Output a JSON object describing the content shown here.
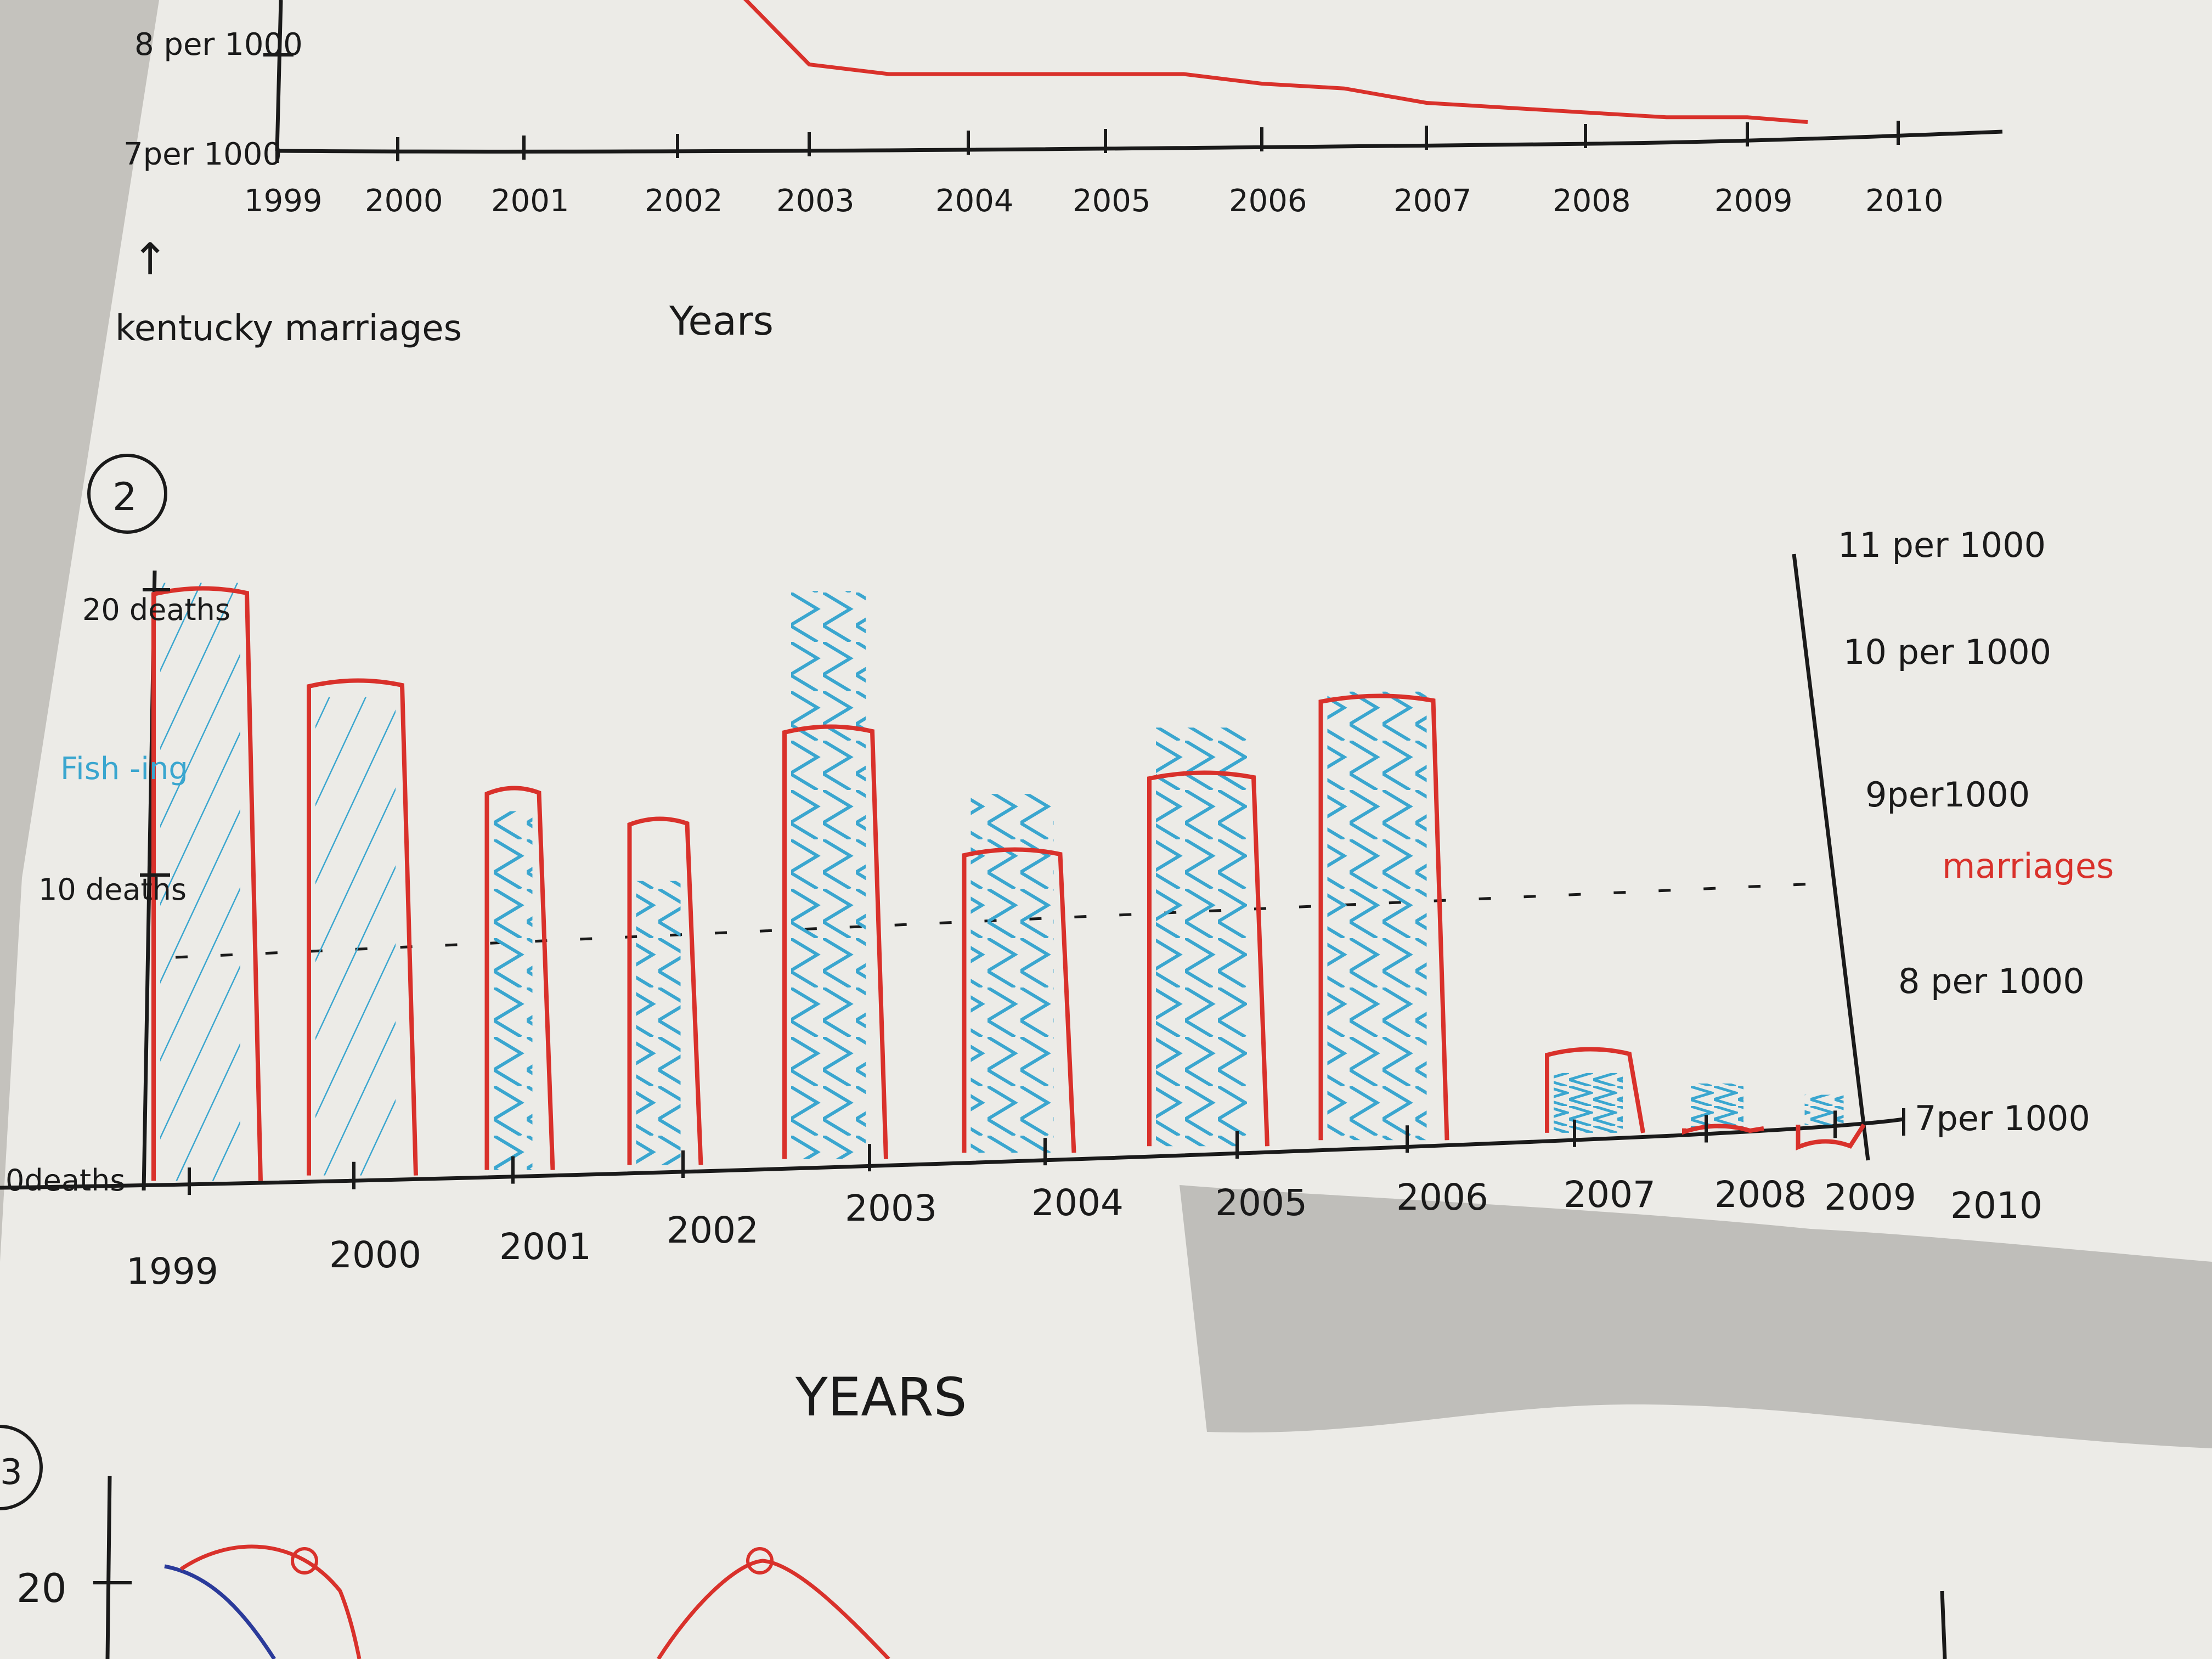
{
  "colors": {
    "paper": "#ecebe7",
    "ink": "#1a1a1a",
    "marriage_red": "#d9312b",
    "fishing_blue": "#3aa6cf",
    "shadow": "#9a9995",
    "top_bg": "#f4f3f0"
  },
  "chart_data": [
    {
      "type": "line",
      "title": "",
      "xlabel": "Years",
      "ylabel": "kentucky marriages",
      "x_ticks": [
        "1999",
        "2000",
        "2001",
        "2002",
        "2003",
        "2004",
        "2005",
        "2006",
        "2007",
        "2008",
        "2009",
        "2010"
      ],
      "y_ticks": [
        "7per 1000",
        "8 per 1000"
      ],
      "ylim_visible": [
        7,
        8.9
      ],
      "series": [
        {
          "color": "#d9312b",
          "x": [
            2002.0,
            2002.5,
            2003.0,
            2003.5,
            2004.0,
            2004.5,
            2005.0,
            2005.5,
            2006.0,
            2006.5,
            2007.0,
            2007.5,
            2008.0,
            2008.5,
            2009.0,
            2009.4
          ],
          "y": [
            8.9,
            8.6,
            7.9,
            7.8,
            7.8,
            7.8,
            7.8,
            7.8,
            7.7,
            7.65,
            7.5,
            7.45,
            7.4,
            7.35,
            7.35,
            7.3
          ]
        }
      ]
    },
    {
      "type": "bar",
      "title": "",
      "panel_number": "2",
      "xlabel": "YEARS",
      "ylabel_left": "",
      "ylabel_right": "",
      "left_axis_labels": [
        "20 deaths",
        "10 deaths",
        "0deaths"
      ],
      "left_axis_series_label": "Fish -ing",
      "right_axis_labels": [
        "11 per 1000",
        "10 per 1000",
        "9per1000",
        "8 per 1000",
        "7per 1000"
      ],
      "right_axis_series_label": "marriages",
      "categories": [
        "1999",
        "2000",
        "2001",
        "2002",
        "2003",
        "2004",
        "2005",
        "2006",
        "2007",
        "2008",
        "2009",
        "2010"
      ],
      "ylim_left": [
        0,
        20
      ],
      "ylim_right": [
        7,
        11
      ],
      "reference_line": {
        "axis": "right",
        "value": 9
      },
      "series": [
        {
          "color": "#d9312b",
          "axis": "right",
          "values": [
            10.9,
            10.3,
            9.6,
            9.4,
            10.0,
            9.2,
            9.7,
            10.2,
            7.9,
            7.4,
            7.3,
            null
          ]
        },
        {
          "color": "#3aa6cf",
          "axis": "left",
          "values": [
            20,
            16,
            12,
            9.5,
            19,
            12,
            14,
            15,
            2,
            1.5,
            1,
            null
          ]
        }
      ]
    }
  ],
  "page3": {
    "number": "3",
    "tick_label": "20"
  }
}
